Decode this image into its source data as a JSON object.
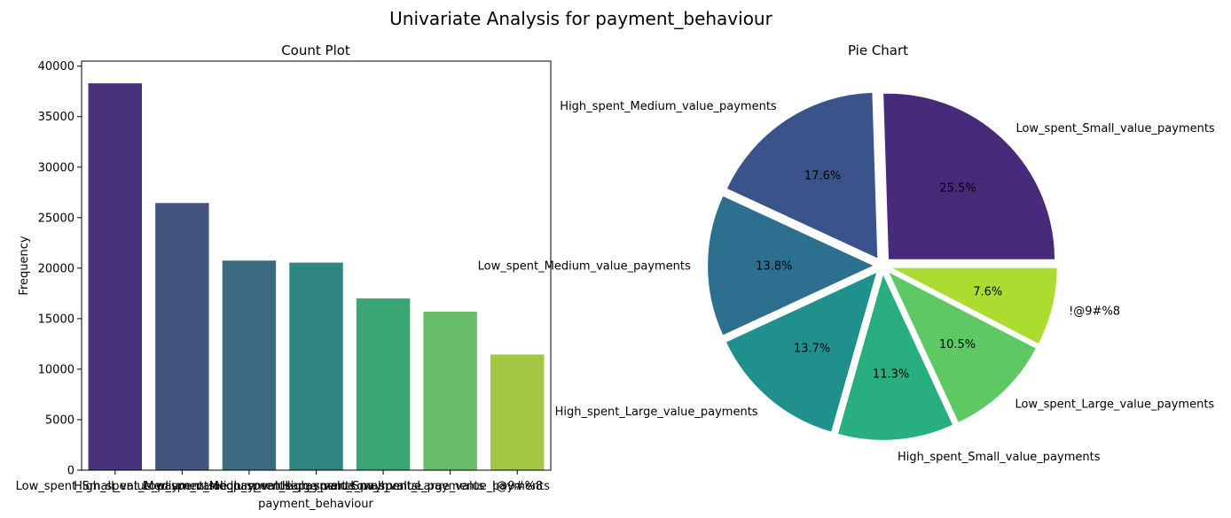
{
  "figure": {
    "suptitle": "Univariate Analysis for payment_behaviour"
  },
  "chart_data": [
    {
      "type": "bar",
      "title": "Count Plot",
      "xlabel": "payment_behaviour",
      "ylabel": "Frequency",
      "categories": [
        "Low_spent_Small_value_payments",
        "High_spent_Medium_value_payments",
        "Low_spent_Medium_value_payments",
        "High_spent_Large_value_payments",
        "High_spent_Small_value_payments",
        "Low_spent_Large_value_payments",
        "!@9#%8"
      ],
      "values": [
        38300,
        26450,
        20750,
        20550,
        17000,
        15700,
        11450
      ],
      "ylim": [
        0,
        40500
      ],
      "yticks": [
        0,
        5000,
        10000,
        15000,
        20000,
        25000,
        30000,
        35000,
        40000
      ],
      "colors": [
        "#48337a",
        "#43557f",
        "#3a6b80",
        "#2f8580",
        "#3ba673",
        "#67bd68",
        "#a1c745"
      ],
      "grid": false
    },
    {
      "type": "pie",
      "title": "Pie Chart",
      "labels": [
        "Low_spent_Small_value_payments",
        "High_spent_Medium_value_payments",
        "Low_spent_Medium_value_payments",
        "High_spent_Large_value_payments",
        "High_spent_Small_value_payments",
        "Low_spent_Large_value_payments",
        "!@9#%8"
      ],
      "percents": [
        25.5,
        17.6,
        13.8,
        13.7,
        11.3,
        10.5,
        7.6
      ],
      "percent_labels": [
        "25.5%",
        "17.6%",
        "13.8%",
        "13.7%",
        "11.3%",
        "10.5%",
        "7.6%"
      ],
      "start_angle_deg": 0,
      "direction": "counterclockwise",
      "exploded": true,
      "colors": [
        "#482a7a",
        "#3b538b",
        "#2d6f8e",
        "#20908c",
        "#29af7f",
        "#5ec962",
        "#addc30"
      ]
    }
  ]
}
